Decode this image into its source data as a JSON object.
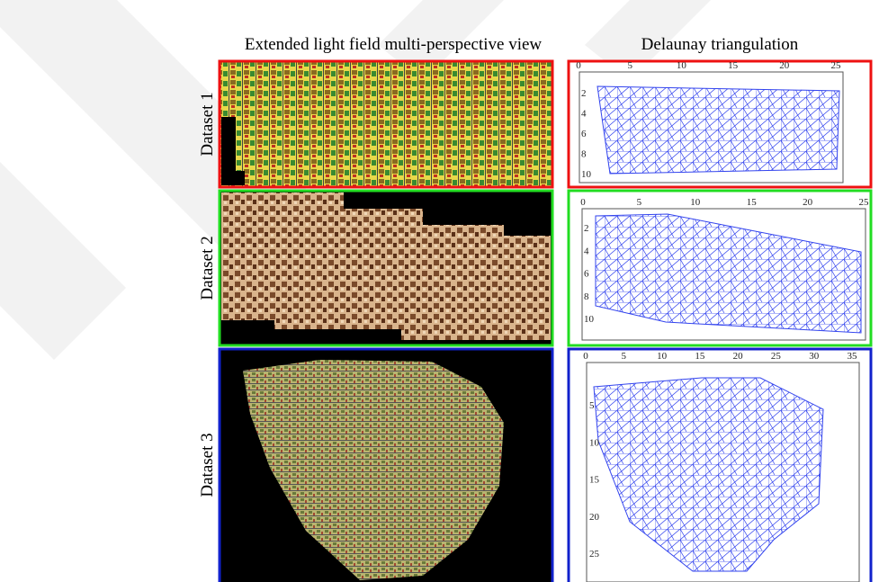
{
  "header": {
    "columns": [
      "Extended light field multi-perspective view",
      "Delaunay triangulation"
    ]
  },
  "rows": [
    {
      "label": "Dataset 1",
      "plot": {
        "xticks": [
          0,
          5,
          10,
          15,
          20,
          25
        ],
        "yticks": [
          2,
          4,
          6,
          8,
          10
        ]
      }
    },
    {
      "label": "Dataset 2",
      "plot": {
        "xticks": [
          0,
          5,
          10,
          15,
          20,
          25
        ],
        "yticks": [
          2,
          4,
          6,
          8,
          10
        ]
      }
    },
    {
      "label": "Dataset 3",
      "plot": {
        "xticks": [
          0,
          5,
          10,
          15,
          20,
          25,
          30,
          35
        ],
        "yticks": [
          5,
          10,
          15,
          20,
          25
        ]
      }
    }
  ]
}
